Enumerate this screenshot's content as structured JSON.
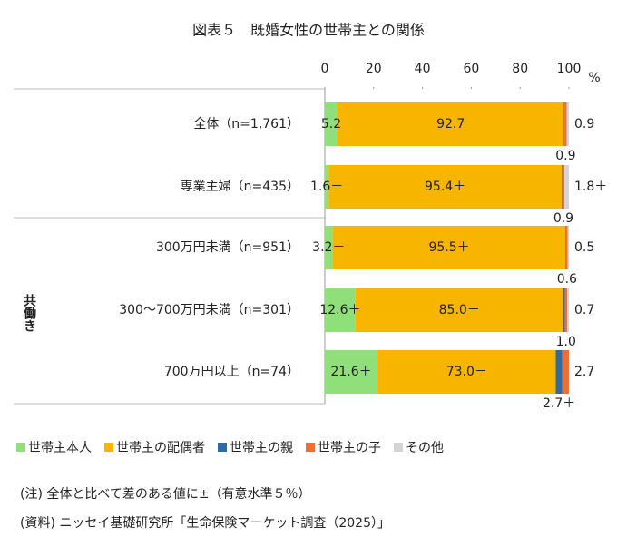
{
  "chart_data": {
    "type": "stacked_barh",
    "title": "図表５　既婚女性の世帯主との関係",
    "x_unit": "%",
    "group_label": "共働き",
    "categories": [
      "全体（n=1,761）",
      "専業主婦（n=435）",
      "300万円未満（n=951）",
      "300～700万円未満（n=301）",
      "700万円以上（n=74）"
    ],
    "series": [
      {
        "name": "世帯主本人",
        "color": "#8fe07a",
        "values": [
          5.2,
          1.6,
          3.2,
          12.6,
          21.6
        ],
        "value_labels": [
          "5.2",
          "1.6－",
          "3.2－",
          "12.6＋",
          "21.6＋"
        ]
      },
      {
        "name": "世帯主の配偶者",
        "color": "#f7b500",
        "values": [
          92.7,
          95.4,
          95.5,
          85.0,
          73.0
        ],
        "value_labels": [
          "92.7",
          "95.4＋",
          "95.5＋",
          "85.0－",
          "73.0－"
        ]
      },
      {
        "name": "世帯主の親",
        "color": "#2f6aa3",
        "values": [
          0.3,
          0.3,
          0.2,
          0.7,
          2.7
        ],
        "value_labels": [
          null,
          null,
          null,
          null,
          "2.7＋"
        ]
      },
      {
        "name": "世帯主の子",
        "color": "#e8703a",
        "values": [
          0.9,
          0.9,
          0.6,
          1.0,
          2.7
        ],
        "value_labels": [
          "0.9",
          "0.9",
          "0.6",
          "1.0",
          "2.7"
        ]
      },
      {
        "name": "その他",
        "color": "#d4d4d4",
        "values": [
          0.9,
          1.8,
          0.5,
          0.7,
          0
        ],
        "value_labels": [
          "0.9",
          "1.8＋",
          "0.5",
          "0.7",
          null
        ]
      }
    ],
    "xlim": [
      0,
      100
    ],
    "xticks": [
      0,
      20,
      40,
      60,
      80,
      100
    ],
    "notes": [
      "(注) 全体と比べて差のある値に±（有意水準５％）",
      "(資料) ニッセイ基礎研究所「生命保険マーケット調査（2025）」"
    ]
  }
}
